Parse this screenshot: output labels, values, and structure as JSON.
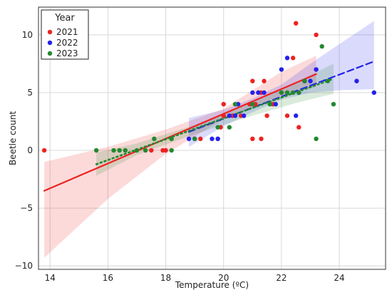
{
  "chart_data": {
    "type": "scatter",
    "xlabel": "Temperature (ºC)",
    "ylabel": "Beetle count",
    "xlim": [
      13.6,
      25.6
    ],
    "ylim": [
      -10.3,
      12.4
    ],
    "xticks": [
      14,
      16,
      18,
      20,
      22,
      24
    ],
    "yticks": [
      -10,
      -5,
      0,
      5,
      10
    ],
    "ytick_labels": [
      "−10",
      "−5",
      "0",
      "5",
      "10"
    ],
    "grid": true,
    "legend": {
      "title": "Year",
      "placement": "top-left"
    },
    "series": [
      {
        "name": "2021",
        "color": "#ee2222",
        "line_style": "solid",
        "points": [
          [
            13.8,
            0
          ],
          [
            17.5,
            0
          ],
          [
            17.9,
            0
          ],
          [
            18.0,
            0
          ],
          [
            19.2,
            1
          ],
          [
            19.8,
            1
          ],
          [
            19.9,
            2
          ],
          [
            20.0,
            4
          ],
          [
            20.0,
            3
          ],
          [
            20.3,
            3
          ],
          [
            20.6,
            3
          ],
          [
            20.9,
            4
          ],
          [
            21.0,
            6
          ],
          [
            21.0,
            1
          ],
          [
            21.1,
            4
          ],
          [
            21.2,
            5
          ],
          [
            21.3,
            5
          ],
          [
            21.3,
            1
          ],
          [
            21.4,
            6
          ],
          [
            21.5,
            3
          ],
          [
            21.7,
            4
          ],
          [
            22.0,
            5
          ],
          [
            22.2,
            3
          ],
          [
            22.4,
            8
          ],
          [
            22.5,
            11
          ],
          [
            22.6,
            2
          ],
          [
            22.8,
            6
          ],
          [
            23.2,
            10
          ],
          [
            23.2,
            7
          ]
        ],
        "fit": {
          "x": [
            13.8,
            23.2
          ],
          "y": [
            -3.5,
            6.6
          ]
        },
        "band": {
          "x": [
            13.8,
            16,
            18,
            20,
            22,
            23.2
          ],
          "lower": [
            -9.3,
            -4.2,
            -0.3,
            2.7,
            4.7,
            5.5
          ],
          "upper": [
            -1.0,
            0.3,
            1.8,
            3.6,
            6.8,
            8.2
          ]
        }
      },
      {
        "name": "2022",
        "color": "#2222ee",
        "line_style": "dashed",
        "points": [
          [
            18.8,
            1
          ],
          [
            19.0,
            1
          ],
          [
            19.6,
            1
          ],
          [
            19.8,
            1
          ],
          [
            20.2,
            3
          ],
          [
            20.4,
            3
          ],
          [
            20.5,
            4
          ],
          [
            20.7,
            3
          ],
          [
            21.0,
            5
          ],
          [
            21.2,
            5
          ],
          [
            21.4,
            5
          ],
          [
            21.8,
            4
          ],
          [
            22.0,
            7
          ],
          [
            22.2,
            8
          ],
          [
            22.5,
            3
          ],
          [
            22.6,
            5
          ],
          [
            22.8,
            6
          ],
          [
            23.0,
            6
          ],
          [
            23.2,
            7
          ],
          [
            24.6,
            6
          ],
          [
            25.2,
            5
          ]
        ],
        "fit": {
          "x": [
            18.8,
            25.2
          ],
          "y": [
            1.6,
            7.7
          ]
        },
        "band": {
          "x": [
            18.8,
            20,
            21,
            22,
            23,
            24,
            25.2
          ],
          "lower": [
            0.3,
            2.1,
            3.3,
            4.4,
            5.0,
            5.2,
            5.3
          ],
          "upper": [
            2.8,
            3.5,
            4.5,
            5.7,
            7.5,
            9.2,
            11.2
          ]
        }
      },
      {
        "name": "2023",
        "color": "#22882e",
        "line_style": "dotted",
        "points": [
          [
            15.6,
            0
          ],
          [
            16.2,
            0
          ],
          [
            16.4,
            0
          ],
          [
            16.6,
            0
          ],
          [
            17.0,
            0
          ],
          [
            17.3,
            0
          ],
          [
            17.6,
            1
          ],
          [
            18.2,
            1
          ],
          [
            18.2,
            0
          ],
          [
            19.0,
            1
          ],
          [
            19.8,
            2
          ],
          [
            20.2,
            2
          ],
          [
            20.4,
            4
          ],
          [
            21.0,
            4
          ],
          [
            21.6,
            4
          ],
          [
            22.0,
            5
          ],
          [
            22.2,
            5
          ],
          [
            22.4,
            5
          ],
          [
            22.6,
            5
          ],
          [
            22.8,
            6
          ],
          [
            23.2,
            1
          ],
          [
            23.4,
            9
          ],
          [
            23.6,
            6
          ],
          [
            23.8,
            4
          ]
        ],
        "fit": {
          "x": [
            15.6,
            23.8
          ],
          "y": [
            -1.2,
            6.2
          ]
        },
        "band": {
          "x": [
            15.6,
            17,
            19,
            21,
            22.5,
            23.8
          ],
          "lower": [
            -2.2,
            -0.4,
            1.4,
            3.0,
            4.1,
            4.9
          ],
          "upper": [
            -0.2,
            0.6,
            2.2,
            4.3,
            5.9,
            7.5
          ]
        }
      }
    ]
  }
}
